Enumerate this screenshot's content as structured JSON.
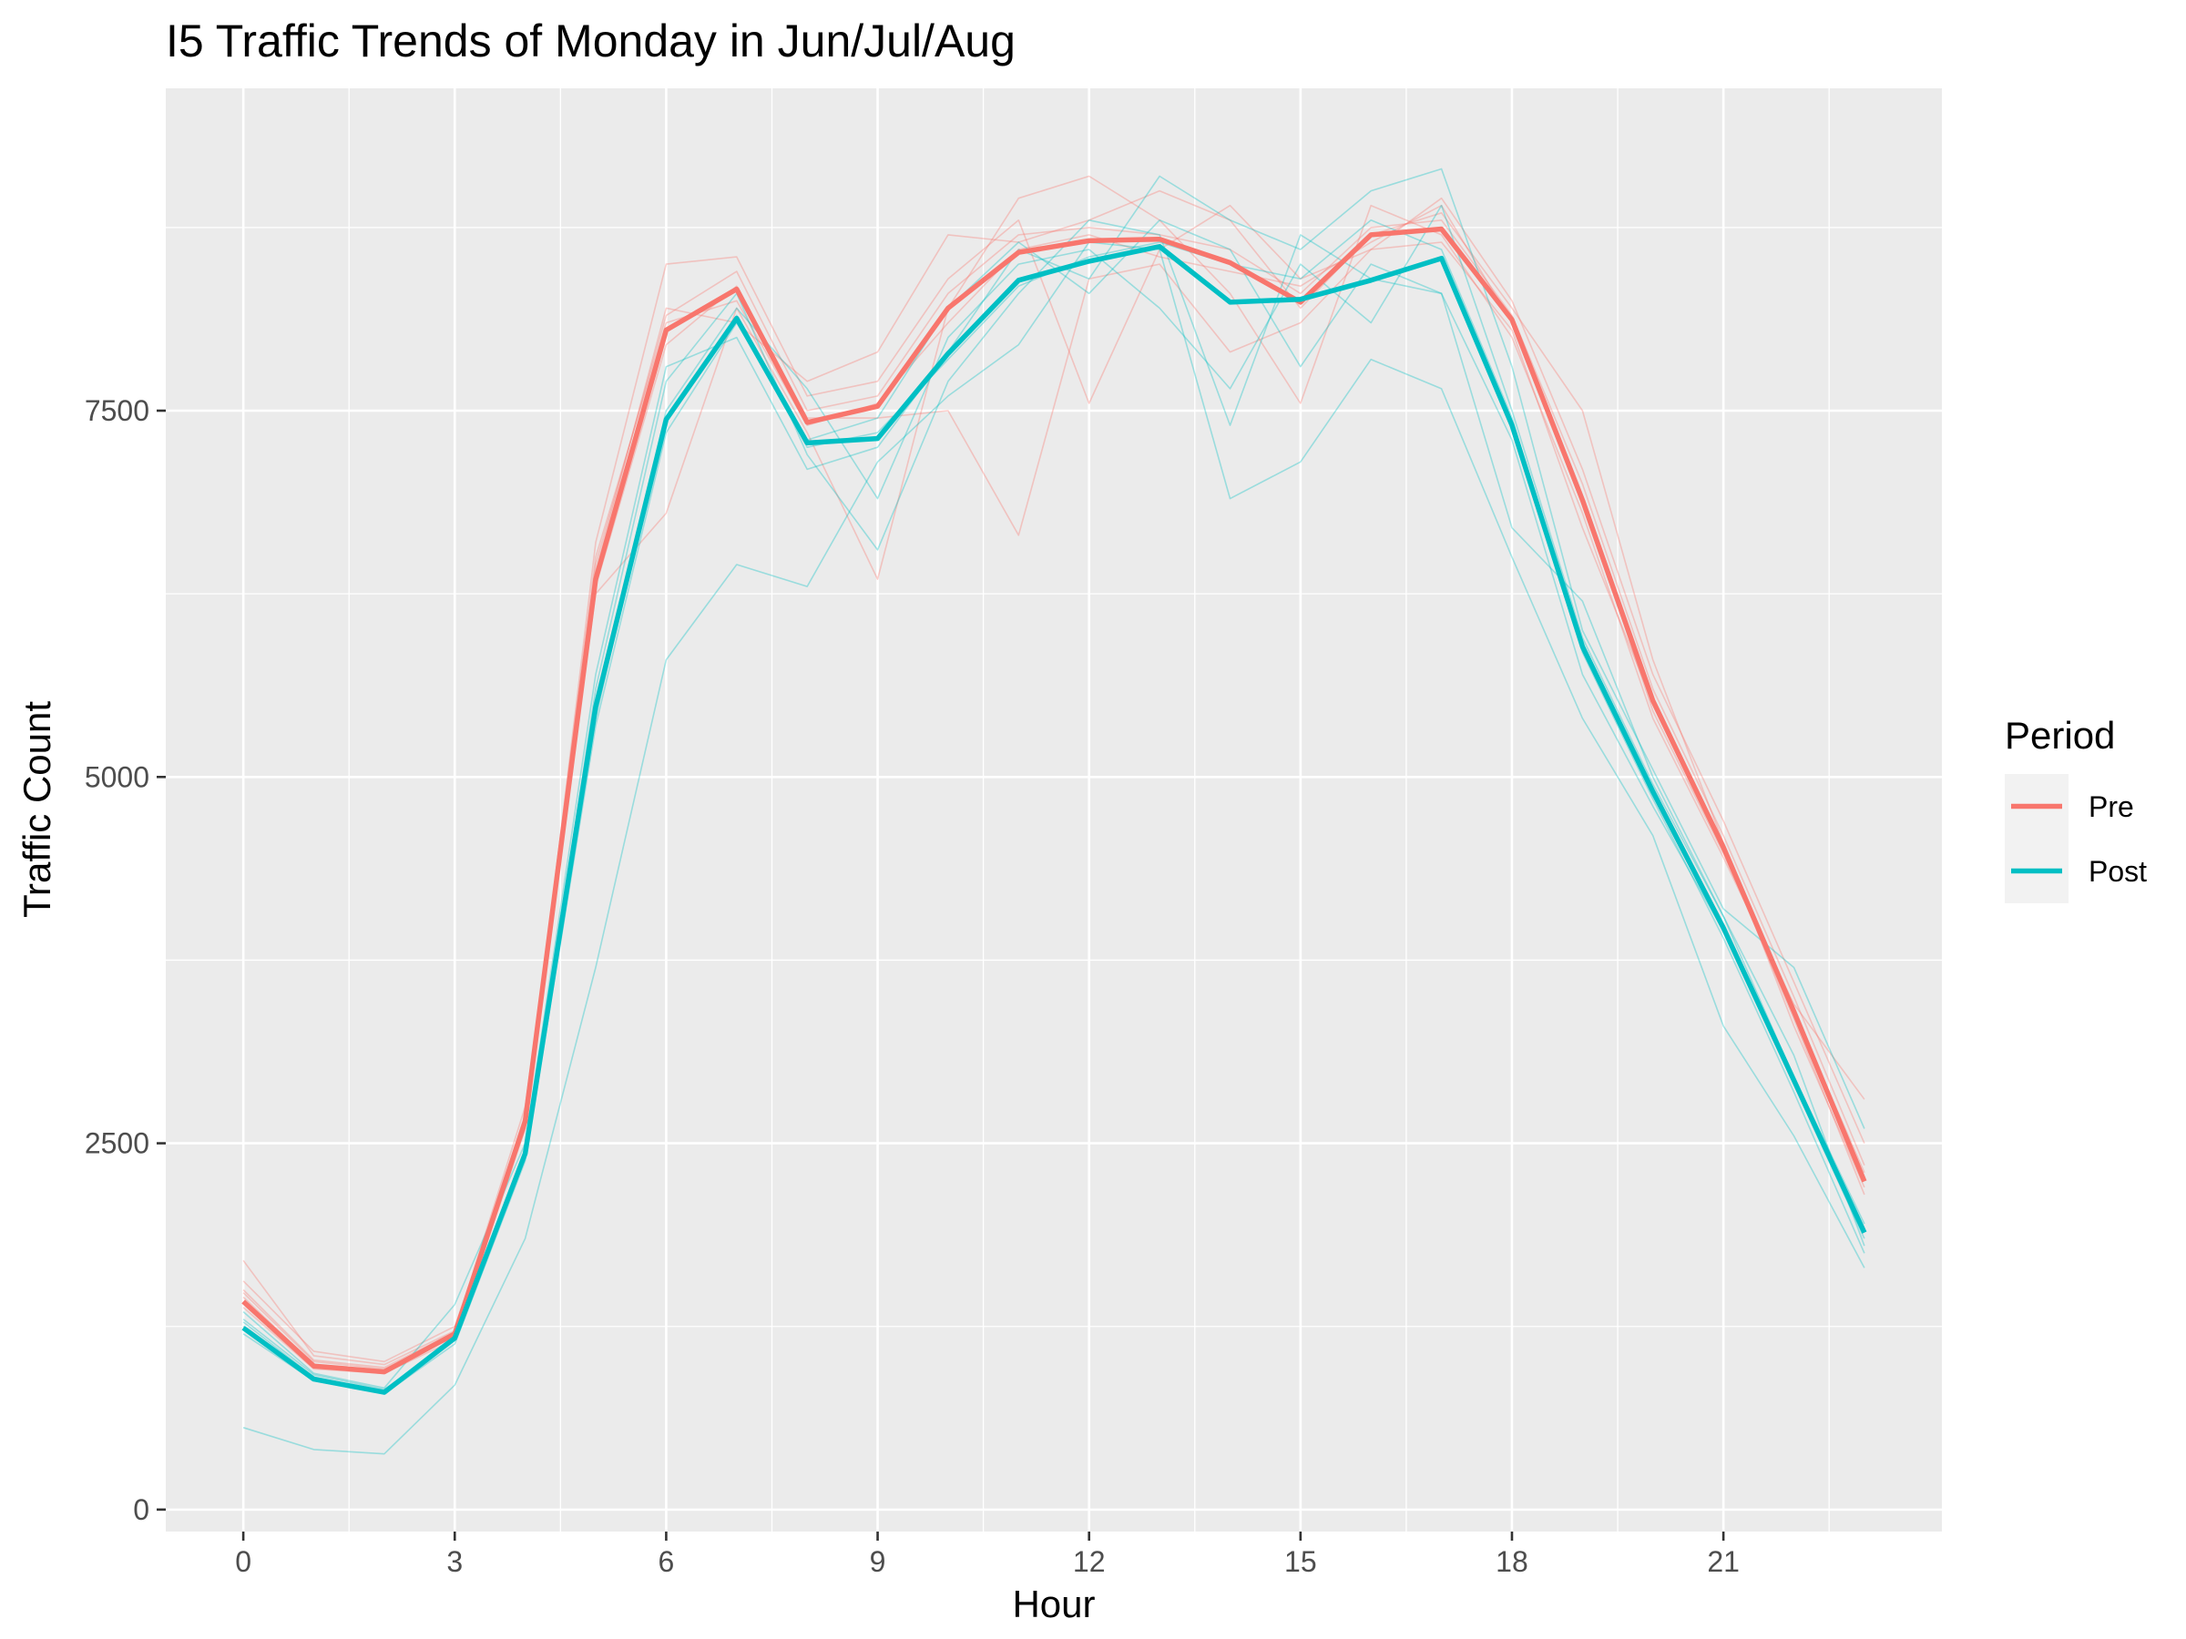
{
  "chart_data": {
    "type": "line",
    "title": "I5 Traffic Trends of Monday in Jun/Jul/Aug",
    "xlabel": "Hour",
    "ylabel": "Traffic Count",
    "xlim": [
      -1.1,
      24.1
    ],
    "ylim": [
      -150,
      9700
    ],
    "x_ticks": [
      0,
      3,
      6,
      9,
      12,
      15,
      18,
      21
    ],
    "x_tick_labels": [
      "0",
      "3",
      "6",
      "9",
      "12",
      "15",
      "18",
      "21"
    ],
    "y_ticks": [
      0,
      2500,
      5000,
      7500
    ],
    "y_tick_labels": [
      "0",
      "2500",
      "5000",
      "7500"
    ],
    "grid": true,
    "legend": {
      "title": "Period",
      "position": "right"
    },
    "x": [
      0,
      1,
      2,
      3,
      4,
      5,
      6,
      7,
      8,
      9,
      10,
      11,
      12,
      13,
      14,
      15,
      16,
      17,
      18,
      19,
      20,
      21,
      22,
      23
    ],
    "series": [
      {
        "name": "Pre",
        "color": "#F8766D",
        "values": [
          1420,
          980,
          940,
          1200,
          2650,
          6350,
          8050,
          8330,
          7420,
          7530,
          8200,
          8580,
          8660,
          8670,
          8510,
          8240,
          8700,
          8740,
          8120,
          6890,
          5520,
          4520,
          3400,
          2240
        ]
      },
      {
        "name": "Post",
        "color": "#00BFC4",
        "values": [
          1240,
          890,
          800,
          1170,
          2430,
          5480,
          7440,
          8130,
          7280,
          7310,
          7890,
          8390,
          8520,
          8620,
          8240,
          8260,
          8390,
          8540,
          7400,
          5890,
          4900,
          3970,
          2930,
          1890
        ]
      }
    ],
    "individual_series_note": "",
    "individual_series": [
      {
        "group": "Pre",
        "values": [
          1480,
          1010,
          960,
          1180,
          2700,
          6450,
          8150,
          8450,
          7500,
          7600,
          8300,
          8700,
          8750,
          8700,
          8600,
          8300,
          8750,
          8800,
          8150,
          7000,
          5600,
          4600,
          3500,
          2350
        ]
      },
      {
        "group": "Pre",
        "values": [
          1560,
          1080,
          1010,
          1250,
          2600,
          6600,
          8500,
          8550,
          7600,
          7700,
          8400,
          8800,
          7550,
          8600,
          8900,
          8400,
          8600,
          8950,
          8250,
          7100,
          5700,
          4700,
          3600,
          2500
        ]
      },
      {
        "group": "Pre",
        "values": [
          1700,
          1050,
          990,
          1220,
          2750,
          6250,
          6800,
          8200,
          7350,
          6350,
          8200,
          8950,
          9100,
          8800,
          8300,
          7550,
          8900,
          8700,
          8000,
          6800,
          5400,
          4450,
          3450,
          2800
        ]
      },
      {
        "group": "Pre",
        "values": [
          1380,
          960,
          930,
          1160,
          2600,
          6400,
          8200,
          8100,
          7700,
          7900,
          8700,
          8650,
          8800,
          9000,
          8800,
          8200,
          8700,
          8850,
          8200,
          7500,
          5800,
          4550,
          3300,
          2200
        ]
      },
      {
        "group": "Pre",
        "values": [
          1450,
          990,
          950,
          1190,
          2650,
          6300,
          7950,
          8350,
          7450,
          7450,
          7500,
          6650,
          8400,
          8500,
          7900,
          8100,
          8600,
          8650,
          8050,
          6700,
          5500,
          4500,
          3350,
          2150
        ]
      },
      {
        "group": "Pre",
        "values": [
          1500,
          1020,
          970,
          1210,
          2680,
          6500,
          8100,
          8250,
          7400,
          7550,
          8100,
          8600,
          8700,
          8550,
          8450,
          8350,
          8650,
          8900,
          8100,
          6900,
          5450,
          4480,
          3400,
          2300
        ]
      },
      {
        "group": "Post",
        "values": [
          560,
          410,
          380,
          850,
          1850,
          3700,
          5800,
          6450,
          6300,
          7150,
          7600,
          7950,
          8650,
          8600,
          6900,
          7150,
          7850,
          7650,
          6500,
          5400,
          4600,
          3300,
          2550,
          1650
        ]
      },
      {
        "group": "Post",
        "values": [
          1300,
          920,
          820,
          1160,
          2400,
          5600,
          7700,
          8300,
          7200,
          6550,
          7700,
          8300,
          8800,
          8700,
          7400,
          8700,
          8400,
          8300,
          6700,
          6200,
          5000,
          4050,
          3100,
          1800
        ]
      },
      {
        "group": "Post",
        "values": [
          1350,
          930,
          830,
          1400,
          2500,
          5700,
          7800,
          8000,
          7100,
          7250,
          7900,
          8600,
          8400,
          9100,
          8800,
          8600,
          9000,
          9150,
          7800,
          6000,
          5050,
          4100,
          3700,
          2600
        ]
      },
      {
        "group": "Post",
        "values": [
          1250,
          900,
          810,
          1190,
          2450,
          5400,
          7500,
          8200,
          7650,
          6900,
          8000,
          8500,
          8600,
          8200,
          7650,
          8500,
          8100,
          8900,
          7500,
          5950,
          4950,
          4050,
          2950,
          1950
        ]
      },
      {
        "group": "Post",
        "values": [
          1200,
          880,
          790,
          1130,
          2380,
          5350,
          7350,
          8100,
          7300,
          7450,
          8200,
          8650,
          8300,
          8800,
          8600,
          7800,
          8500,
          8300,
          7300,
          5700,
          4800,
          3950,
          2900,
          1850
        ]
      },
      {
        "group": "Post",
        "values": [
          1280,
          905,
          805,
          1175,
          2420,
          5500,
          7450,
          8150,
          7250,
          7350,
          7850,
          8350,
          8550,
          8650,
          8500,
          8400,
          8800,
          8600,
          7450,
          5850,
          4850,
          3900,
          2850,
          1750
        ]
      }
    ]
  }
}
